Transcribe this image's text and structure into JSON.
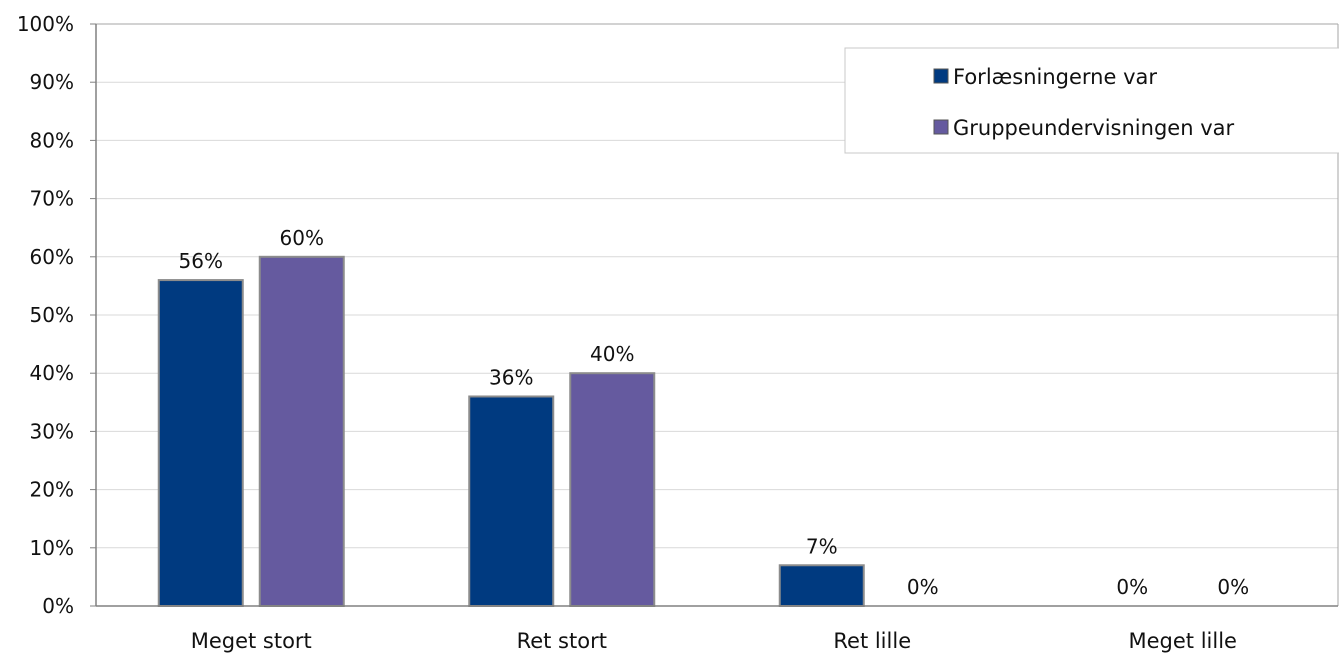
{
  "chart_data": {
    "type": "bar",
    "categories": [
      "Meget stort",
      "Ret stort",
      "Ret lille",
      "Meget lille"
    ],
    "series": [
      {
        "name": "Forlæsningerne var",
        "values": [
          56,
          36,
          7,
          0
        ],
        "color": "#003a80"
      },
      {
        "name": "Gruppeundervisningen var",
        "values": [
          60,
          40,
          0,
          0
        ],
        "color": "#655a9f"
      }
    ],
    "data_labels": [
      [
        "56%",
        "36%",
        "7%",
        "0%"
      ],
      [
        "60%",
        "40%",
        "0%",
        "0%"
      ]
    ],
    "ylim": [
      0,
      100
    ],
    "yticks": [
      0,
      10,
      20,
      30,
      40,
      50,
      60,
      70,
      80,
      90,
      100
    ],
    "ytick_labels": [
      "0%",
      "10%",
      "20%",
      "30%",
      "40%",
      "50%",
      "60%",
      "70%",
      "80%",
      "90%",
      "100%"
    ],
    "grid": true,
    "legend_position": "top-right",
    "title": "",
    "xlabel": "",
    "ylabel": ""
  }
}
